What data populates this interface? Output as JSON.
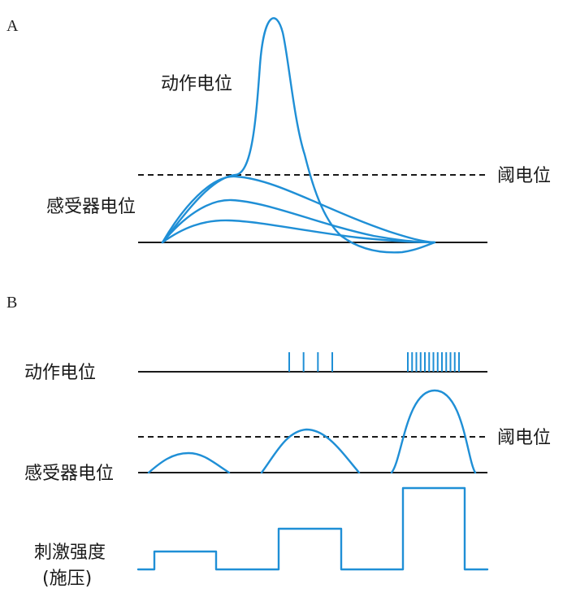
{
  "panel_a": {
    "letter": "A",
    "action_potential_label": "动作电位",
    "threshold_label": "阈电位",
    "receptor_potential_label": "感受器电位"
  },
  "panel_b": {
    "letter": "B",
    "action_potential_label": "动作电位",
    "threshold_label": "阈电位",
    "receptor_potential_label": "感受器电位",
    "stimulus_label_line1": "刺激强度",
    "stimulus_label_line2": "(施压)",
    "spike_groups": [
      0,
      4,
      13
    ]
  },
  "colors": {
    "curve": "#1f8fd6",
    "line": "#1a1a1a"
  }
}
